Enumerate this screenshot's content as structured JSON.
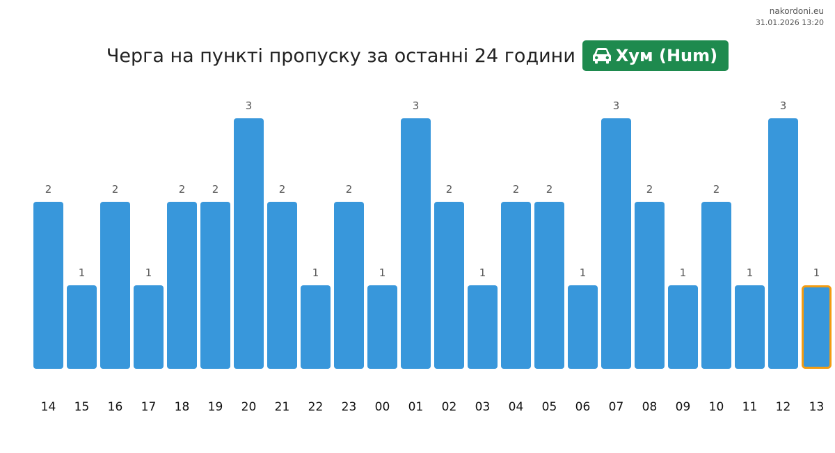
{
  "source": {
    "site": "nakordoni.eu",
    "datetime": "31.01.2026 13:20"
  },
  "header": {
    "title": "Черга на пункті пропуску за останні 24 години",
    "checkpoint_name": "Хум (Hum)",
    "checkpoint_icon": "car-icon",
    "badge_color": "#1e8a4e"
  },
  "colors": {
    "bar": "#3897db",
    "highlight_border": "#f39c12"
  },
  "chart_data": {
    "type": "bar",
    "categories": [
      "14",
      "15",
      "16",
      "17",
      "18",
      "19",
      "20",
      "21",
      "22",
      "23",
      "00",
      "01",
      "02",
      "03",
      "04",
      "05",
      "06",
      "07",
      "08",
      "09",
      "10",
      "11",
      "12",
      "13"
    ],
    "values": [
      2,
      1,
      2,
      1,
      2,
      2,
      3,
      2,
      1,
      2,
      1,
      3,
      2,
      1,
      2,
      2,
      1,
      3,
      2,
      1,
      2,
      1,
      3,
      1
    ],
    "ylim": [
      0,
      3
    ],
    "grid": false,
    "highlighted_category": "13",
    "title": "",
    "xlabel": "",
    "ylabel": ""
  }
}
